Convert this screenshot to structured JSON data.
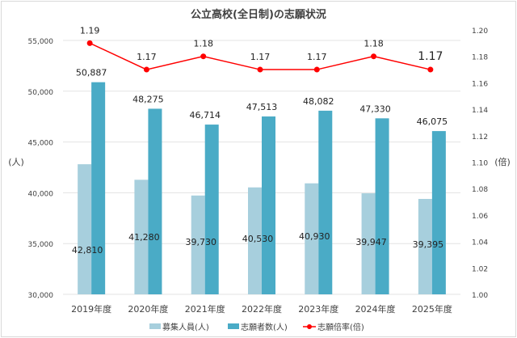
{
  "chart_data": {
    "type": "bar",
    "title": "公立高校(全日制)の志願状況",
    "categories": [
      "2019年度",
      "2020年度",
      "2021年度",
      "2022年度",
      "2023年度",
      "2024年度",
      "2025年度"
    ],
    "ylabel": "(人)",
    "y2label": "(倍)",
    "ylim": [
      30000,
      55000
    ],
    "y2lim": [
      1.0,
      1.2
    ],
    "yticks": [
      "30,000",
      "35,000",
      "40,000",
      "45,000",
      "50,000",
      "55,000"
    ],
    "y2ticks": [
      "1.00",
      "1.02",
      "1.04",
      "1.06",
      "1.08",
      "1.10",
      "1.12",
      "1.14",
      "1.16",
      "1.18",
      "1.20"
    ],
    "grid": true,
    "legend_position": "bottom",
    "series": [
      {
        "name": "募集人員(人)",
        "type": "bar",
        "color": "#a7cfdd",
        "values": [
          42810,
          41280,
          39730,
          40530,
          40930,
          39947,
          39395
        ],
        "labels": [
          "42,810",
          "41,280",
          "39,730",
          "40,530",
          "40,930",
          "39,947",
          "39,395"
        ]
      },
      {
        "name": "志願者数(人)",
        "type": "bar",
        "color": "#4aabc6",
        "values": [
          50887,
          48275,
          46714,
          47513,
          48082,
          47330,
          46075
        ],
        "labels": [
          "50,887",
          "48,275",
          "46,714",
          "47,513",
          "48,082",
          "47,330",
          "46,075"
        ]
      },
      {
        "name": "志願倍率(倍)",
        "type": "line",
        "axis": "right",
        "color": "#ff0000",
        "values": [
          1.19,
          1.17,
          1.18,
          1.17,
          1.17,
          1.18,
          1.17
        ],
        "labels": [
          "1.19",
          "1.17",
          "1.18",
          "1.17",
          "1.17",
          "1.18",
          "1.17"
        ]
      }
    ]
  }
}
